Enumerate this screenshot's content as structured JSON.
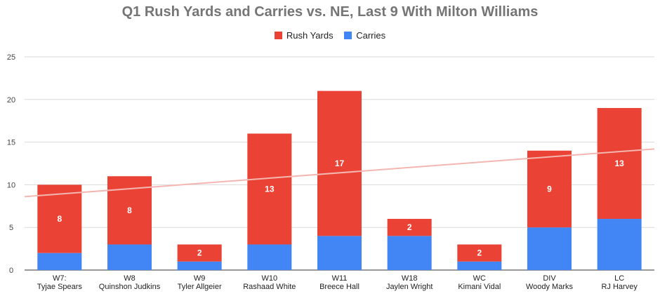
{
  "chart_data": {
    "type": "bar",
    "stacked": true,
    "title": "Q1 Rush Yards and Carries vs. NE, Last 9 With Milton Williams",
    "categories": [
      [
        "W7:",
        "Tyjae Spears"
      ],
      [
        "W8",
        "Quinshon Judkins"
      ],
      [
        "W9",
        "Tyler Allgeier"
      ],
      [
        "W10",
        "Rashaad White"
      ],
      [
        "W11",
        "Breece Hall"
      ],
      [
        "W18",
        "Jaylen Wright"
      ],
      [
        "WC",
        "Kimani Vidal"
      ],
      [
        "DIV",
        "Woody Marks"
      ],
      [
        "LC",
        "RJ Harvey"
      ]
    ],
    "series": [
      {
        "name": "Rush Yards",
        "color": "#ea4335",
        "values": [
          8,
          8,
          2,
          13,
          17,
          2,
          2,
          9,
          13
        ]
      },
      {
        "name": "Carries",
        "color": "#4285f4",
        "values": [
          2,
          3,
          1,
          3,
          4,
          4,
          1,
          5,
          6
        ]
      }
    ],
    "data_labels": [
      "8",
      "8",
      "2",
      "13",
      "17",
      "2",
      "2",
      "9",
      "13"
    ],
    "yticks": [
      0,
      5,
      10,
      15,
      20,
      25
    ],
    "ylim": [
      0,
      25
    ],
    "xlabel": "",
    "ylabel": "",
    "trendline": {
      "color": "#f4b6b0",
      "start": 8.6,
      "end": 14.2
    },
    "legend": "top-center",
    "grid": true
  }
}
